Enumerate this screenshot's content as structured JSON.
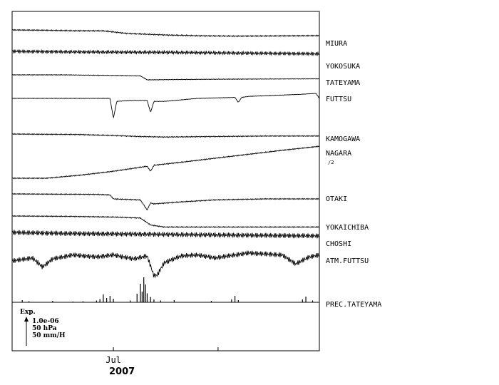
{
  "chart_data": {
    "type": "line",
    "x_start": "2007-06-01",
    "x_end": "2007-08-31",
    "x_ticks": [
      {
        "date": "2007-07-01",
        "label": "Jul"
      },
      {
        "date": "2007-08-01",
        "label": ""
      }
    ],
    "year_label": "2007",
    "scale_legend": {
      "header": "Exp.",
      "lines": [
        "1.0e-06",
        "50 hPa",
        "50 mm/H"
      ]
    },
    "series": [
      {
        "name": "MIURA",
        "sample_days": [
          0,
          9,
          18,
          27,
          30,
          34,
          45,
          55,
          66,
          76,
          91
        ],
        "values": [
          0.0,
          -0.03,
          -0.08,
          -0.09,
          -0.2,
          -0.35,
          -0.5,
          -0.58,
          -0.62,
          -0.6,
          -0.57
        ],
        "wiggle": 0.06
      },
      {
        "name": "YOKOSUKA",
        "sample_days": [
          0,
          15,
          30,
          45,
          60,
          75,
          91
        ],
        "values": [
          0.0,
          -0.05,
          -0.08,
          -0.1,
          -0.15,
          -0.2,
          -0.25
        ],
        "wiggle": 0.18
      },
      {
        "name": "TATEYAMA",
        "sample_days": [
          0,
          15,
          28,
          38,
          40,
          55,
          70,
          91
        ],
        "values": [
          0.0,
          0.0,
          -0.05,
          -0.1,
          -0.5,
          -0.45,
          -0.42,
          -0.4
        ],
        "wiggle": 0.03
      },
      {
        "name": "FUTTSU",
        "sample_days": [
          0,
          20,
          29,
          30,
          31,
          35,
          40,
          41,
          42,
          45,
          55,
          66,
          67,
          68,
          70,
          85,
          90,
          91
        ],
        "values": [
          0.0,
          0.0,
          0.0,
          -2.0,
          -0.3,
          -0.2,
          -0.2,
          -1.4,
          -0.3,
          -0.3,
          0.0,
          0.1,
          -0.4,
          0.1,
          0.2,
          0.4,
          0.5,
          0.0
        ],
        "wiggle": 0.02
      },
      {
        "name": "KAMOGAWA",
        "sample_days": [
          0,
          20,
          30,
          38,
          45,
          60,
          75,
          91
        ],
        "values": [
          0.0,
          -0.05,
          -0.15,
          -0.25,
          -0.3,
          -0.25,
          -0.2,
          -0.2
        ],
        "wiggle": 0.05
      },
      {
        "name": "NAGARA",
        "sample_days": [
          0,
          10,
          20,
          30,
          40,
          41,
          42,
          50,
          60,
          70,
          80,
          91
        ],
        "values": [
          0.0,
          0.0,
          0.3,
          0.7,
          1.2,
          0.7,
          1.3,
          1.6,
          2.0,
          2.4,
          2.8,
          3.2
        ],
        "wiggle": 0.05,
        "note": "/2"
      },
      {
        "name": "OTAKI",
        "sample_days": [
          0,
          25,
          29,
          30,
          38,
          40,
          41,
          42,
          50,
          60,
          75,
          91
        ],
        "values": [
          0.0,
          -0.05,
          -0.1,
          -0.5,
          -0.6,
          -1.6,
          -0.9,
          -1.0,
          -0.8,
          -0.6,
          -0.5,
          -0.5
        ],
        "wiggle": 0.05
      },
      {
        "name": "YOKAICHIBA",
        "sample_days": [
          0,
          15,
          30,
          38,
          41,
          45,
          60,
          75,
          91
        ],
        "values": [
          0.0,
          -0.03,
          -0.1,
          -0.2,
          -0.9,
          -1.1,
          -1.1,
          -1.1,
          -1.1
        ],
        "wiggle": 0.05
      },
      {
        "name": "CHOSHI",
        "sample_days": [
          0,
          15,
          30,
          45,
          60,
          75,
          91
        ],
        "values": [
          0.0,
          -0.1,
          -0.15,
          -0.2,
          -0.25,
          -0.3,
          -0.35
        ],
        "wiggle": 0.25
      },
      {
        "name": "ATM.FUTTSU",
        "sample_days": [
          0,
          6,
          9,
          12,
          18,
          25,
          30,
          36,
          40,
          42,
          43,
          45,
          50,
          55,
          60,
          70,
          80,
          84,
          88,
          91
        ],
        "values": [
          0.0,
          0.3,
          -0.6,
          0.2,
          0.6,
          0.4,
          0.6,
          0.2,
          0.5,
          -1.5,
          -1.4,
          -0.2,
          0.5,
          0.6,
          0.3,
          0.8,
          0.6,
          -0.3,
          0.4,
          0.6
        ],
        "wiggle": 0.25
      },
      {
        "name": "PREC.TATEYAMA",
        "type": "bar",
        "events": [
          {
            "day": 3,
            "value": 0.6
          },
          {
            "day": 5,
            "value": 0.3
          },
          {
            "day": 12,
            "value": 0.4
          },
          {
            "day": 18,
            "value": 0.2
          },
          {
            "day": 21,
            "value": 0.3
          },
          {
            "day": 25,
            "value": 0.5
          },
          {
            "day": 26,
            "value": 0.9
          },
          {
            "day": 27,
            "value": 2.2
          },
          {
            "day": 28,
            "value": 1.2
          },
          {
            "day": 29,
            "value": 1.8
          },
          {
            "day": 30,
            "value": 1.0
          },
          {
            "day": 35,
            "value": 0.5
          },
          {
            "day": 37,
            "value": 2.4
          },
          {
            "day": 38,
            "value": 5.2
          },
          {
            "day": 38.5,
            "value": 3.0
          },
          {
            "day": 39,
            "value": 7.0
          },
          {
            "day": 39.5,
            "value": 5.0
          },
          {
            "day": 40,
            "value": 2.5
          },
          {
            "day": 41,
            "value": 1.5
          },
          {
            "day": 42,
            "value": 0.8
          },
          {
            "day": 44,
            "value": 0.5
          },
          {
            "day": 48,
            "value": 0.6
          },
          {
            "day": 59,
            "value": 0.4
          },
          {
            "day": 65,
            "value": 0.8
          },
          {
            "day": 66,
            "value": 1.8
          },
          {
            "day": 67,
            "value": 0.6
          },
          {
            "day": 86,
            "value": 0.8
          },
          {
            "day": 87,
            "value": 1.6
          },
          {
            "day": 89,
            "value": 0.5
          }
        ]
      }
    ],
    "grid": false,
    "legend": "right"
  }
}
